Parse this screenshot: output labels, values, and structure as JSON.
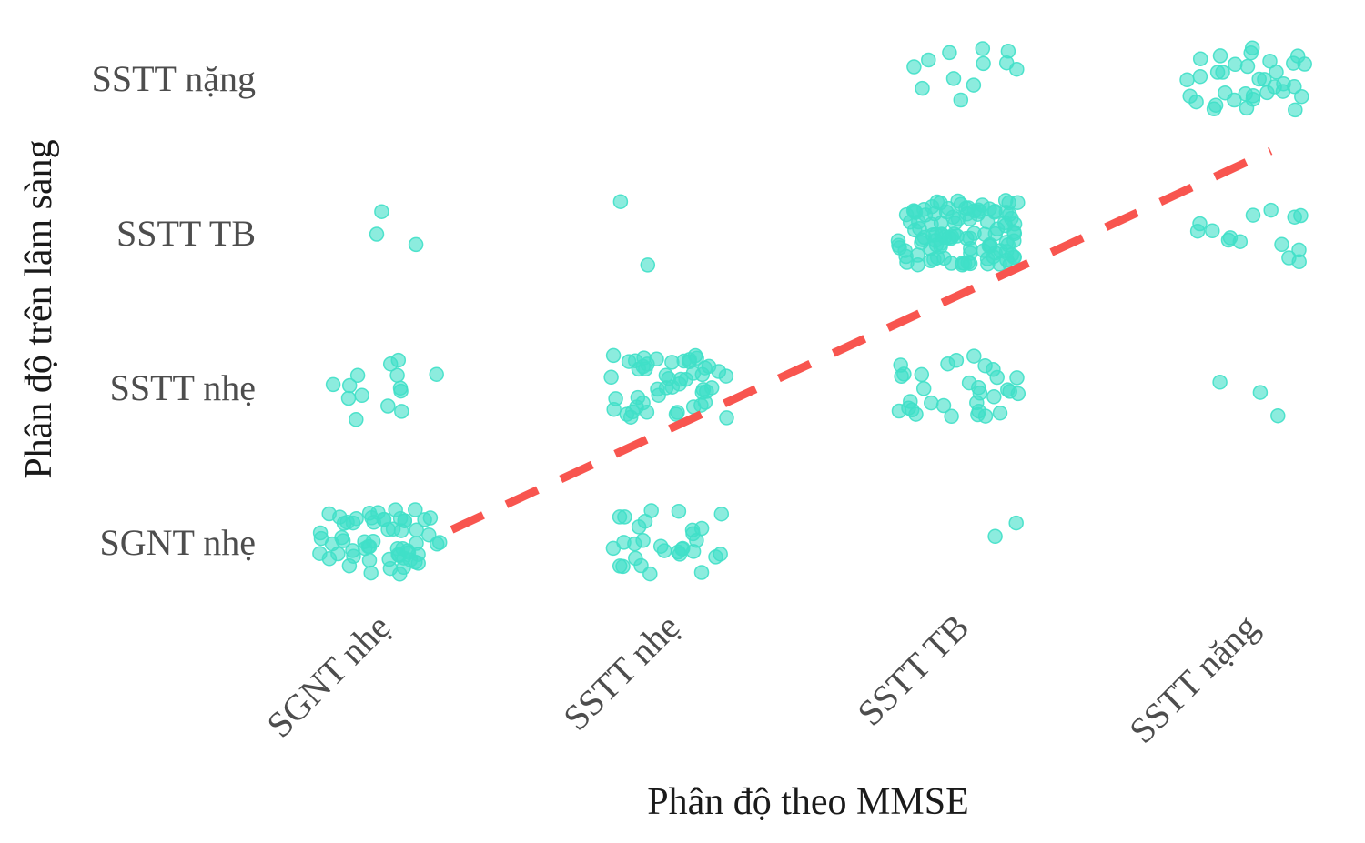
{
  "chart_data": {
    "type": "scatter",
    "xlabel": "Phân độ theo MMSE",
    "ylabel": "Phân độ trên lâm sàng",
    "categories": [
      "SGNT nhẹ",
      "SSTT nhẹ",
      "SSTT TB",
      "SSTT nặng"
    ],
    "point_color": "#40E0C8",
    "trend_color": "#F8554F",
    "trend_line": {
      "style": "dashed",
      "from": [
        1.25,
        1.08
      ],
      "to": [
        4.08,
        3.53
      ]
    },
    "jitter": "horizontal and vertical jitter within each category cell",
    "grid": false,
    "points": [
      {
        "x": 1,
        "y": 1,
        "n": 60
      },
      {
        "x": 1,
        "y": 2,
        "n": 14
      },
      {
        "x": 1,
        "y": 3,
        "n": 3
      },
      {
        "x": 2,
        "y": 1,
        "n": 30
      },
      {
        "x": 2,
        "y": 2,
        "n": 50
      },
      {
        "x": 2,
        "y": 3,
        "n": 2
      },
      {
        "x": 3,
        "y": 1,
        "n": 2
      },
      {
        "x": 3,
        "y": 2,
        "n": 32
      },
      {
        "x": 3,
        "y": 3,
        "n": 110
      },
      {
        "x": 3,
        "y": 4,
        "n": 12
      },
      {
        "x": 4,
        "y": 2,
        "n": 3
      },
      {
        "x": 4,
        "y": 3,
        "n": 14
      },
      {
        "x": 4,
        "y": 4,
        "n": 34
      }
    ]
  }
}
